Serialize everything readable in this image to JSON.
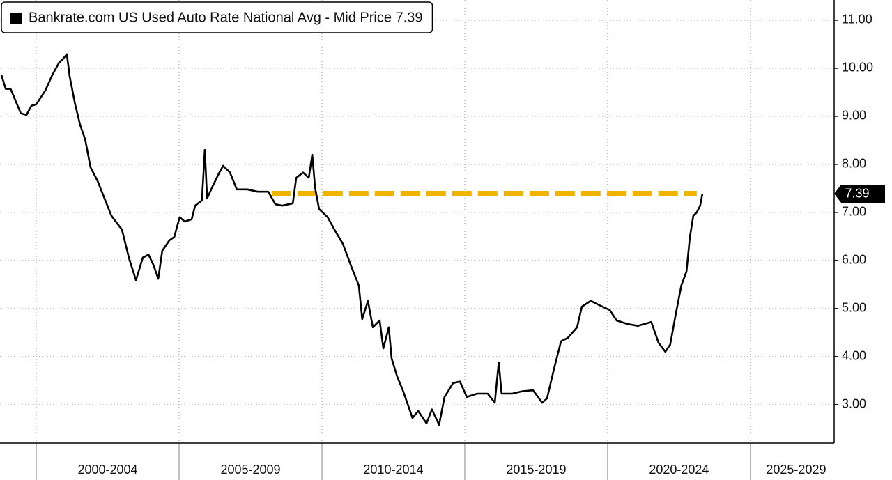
{
  "chart_data": {
    "type": "line",
    "x": [
      1998.78,
      1998.93,
      1999.1,
      1999.46,
      1999.66,
      1999.83,
      2000.0,
      2000.32,
      2000.56,
      2000.8,
      2000.93,
      2001.07,
      2001.17,
      2001.36,
      2001.54,
      2001.71,
      2001.9,
      2002.15,
      2002.39,
      2002.63,
      2003.0,
      2003.24,
      2003.49,
      2003.73,
      2003.93,
      2004.1,
      2004.27,
      2004.41,
      2004.66,
      2004.83,
      2005.02,
      2005.2,
      2005.44,
      2005.56,
      2005.8,
      2005.9,
      2005.98,
      2006.17,
      2006.41,
      2006.54,
      2006.78,
      2007.02,
      2007.39,
      2007.75,
      2008.12,
      2008.37,
      2008.61,
      2008.98,
      2009.1,
      2009.34,
      2009.54,
      2009.66,
      2009.76,
      2009.9,
      2010.2,
      2010.44,
      2010.73,
      2011.05,
      2011.29,
      2011.41,
      2011.61,
      2011.78,
      2012.02,
      2012.15,
      2012.34,
      2012.44,
      2012.63,
      2012.83,
      2013.0,
      2013.17,
      2013.37,
      2013.66,
      2013.85,
      2014.1,
      2014.29,
      2014.59,
      2014.83,
      2015.07,
      2015.44,
      2015.8,
      2016.05,
      2016.19,
      2016.29,
      2016.66,
      2017.02,
      2017.39,
      2017.71,
      2017.88,
      2018.12,
      2018.37,
      2018.61,
      2018.93,
      2019.1,
      2019.41,
      2019.71,
      2020.07,
      2020.32,
      2020.68,
      2021.05,
      2021.53,
      2021.78,
      2022.02,
      2022.19,
      2022.39,
      2022.58,
      2022.76,
      2022.88,
      2023.0,
      2023.12,
      2023.24,
      2023.32
    ],
    "series": [
      {
        "name": "Bankrate.com US Used Auto Rate National Avg - Mid Price 7.39",
        "color": "#000000",
        "values": [
          9.86,
          9.57,
          9.57,
          9.06,
          9.03,
          9.22,
          9.25,
          9.54,
          9.86,
          10.12,
          10.19,
          10.29,
          9.83,
          9.25,
          8.81,
          8.52,
          7.94,
          7.65,
          7.29,
          6.93,
          6.64,
          6.06,
          5.59,
          6.06,
          6.12,
          5.91,
          5.62,
          6.2,
          6.42,
          6.49,
          6.9,
          6.81,
          6.86,
          7.14,
          7.25,
          8.3,
          7.29,
          7.54,
          7.83,
          7.97,
          7.83,
          7.48,
          7.48,
          7.43,
          7.43,
          7.17,
          7.14,
          7.19,
          7.72,
          7.83,
          7.72,
          8.2,
          7.51,
          7.07,
          6.9,
          6.64,
          6.35,
          5.84,
          5.48,
          4.78,
          5.16,
          4.61,
          4.75,
          4.17,
          4.61,
          3.96,
          3.59,
          3.3,
          3.01,
          2.72,
          2.87,
          2.61,
          2.9,
          2.58,
          3.16,
          3.45,
          3.48,
          3.16,
          3.23,
          3.23,
          3.04,
          3.88,
          3.23,
          3.23,
          3.28,
          3.3,
          3.04,
          3.13,
          3.74,
          4.32,
          4.39,
          4.61,
          5.04,
          5.16,
          5.07,
          4.97,
          4.75,
          4.68,
          4.64,
          4.72,
          4.29,
          4.1,
          4.25,
          4.9,
          5.48,
          5.77,
          6.49,
          6.93,
          7.0,
          7.14,
          7.39
        ]
      }
    ],
    "last_value": 7.39,
    "reference_line": {
      "value": 7.39,
      "x": [
        2008.24,
        2023.12
      ],
      "color": "#f0b400"
    },
    "xlim": [
      1998.73,
      2027.93
    ],
    "ylim": [
      2.2,
      11.42
    ],
    "xticks": [
      {
        "value": 2000,
        "label": "2000-2004"
      },
      {
        "value": 2005,
        "label": "2005-2009"
      },
      {
        "value": 2010,
        "label": "2010-2014"
      },
      {
        "value": 2015,
        "label": "2015-2019"
      },
      {
        "value": 2020,
        "label": "2020-2024"
      },
      {
        "value": 2025,
        "label": "2025-2029"
      }
    ],
    "yticks": [
      {
        "value": 3,
        "label": "3.00"
      },
      {
        "value": 4,
        "label": "4.00"
      },
      {
        "value": 5,
        "label": "5.00"
      },
      {
        "value": 6,
        "label": "6.00"
      },
      {
        "value": 7,
        "label": "7.00"
      },
      {
        "value": 8,
        "label": "8.00"
      },
      {
        "value": 9,
        "label": "9.00"
      },
      {
        "value": 10,
        "label": "10.00"
      },
      {
        "value": 11,
        "label": "11.00"
      }
    ],
    "grid": true,
    "legend": "top-left"
  }
}
